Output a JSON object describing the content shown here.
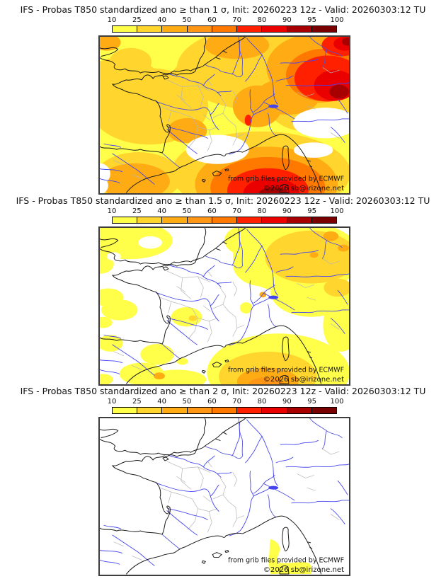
{
  "panels": [
    {
      "title": "IFS - Probas T850  standardized ano ≥ than 1 σ, Init: 20260223 12z - Valid: 20260303:12 TU",
      "threshold": "≥ 1 σ",
      "attribution_line1": "from grib files provided by ECMWF",
      "attribution_line2": "©2026 sb@irizone.net"
    },
    {
      "title": "IFS - Probas T850  standardized ano ≥ than 1.5 σ, Init: 20260223 12z - Valid: 20260303:12 TU",
      "threshold": "≥ 1.5 σ",
      "attribution_line1": "from grib files provided by ECMWF",
      "attribution_line2": "©2026 sb@irizone.net"
    },
    {
      "title": "IFS - Probas T850  standardized ano ≥ than 2 σ, Init: 20260223 12z - Valid: 20260303:12 TU",
      "threshold": "≥ 2 σ",
      "attribution_line1": "from grib files provided by ECMWF",
      "attribution_line2": "©2026 sb@irizone.net"
    }
  ],
  "colorbar": {
    "tick_labels": [
      "10",
      "25",
      "40",
      "50",
      "60",
      "70",
      "80",
      "90",
      "95",
      "100"
    ],
    "segment_colors": [
      "#FFFF4A",
      "#FFD52E",
      "#FFAC14",
      "#FF9614",
      "#FF7800",
      "#FF2000",
      "#EB0000",
      "#A80000",
      "#780000"
    ]
  },
  "palette": {
    "white": "#FFFFFF",
    "p10": "#FFFF4A",
    "p25": "#FFD52E",
    "p40": "#FFAC14",
    "p50": "#FF9614",
    "p60": "#FF7800",
    "p70": "#FF2000",
    "p80": "#EB0000",
    "p90": "#A80000",
    "p95": "#780000"
  },
  "chart_data": {
    "type": "heatmap",
    "subtype": "filled-contour probability maps over France / western Europe",
    "model": "IFS",
    "variable": "Probability that T850 standardized anomaly exceeds threshold (%)",
    "init": "20260223 12z",
    "valid": "20260303:12 TU",
    "scale_percent": [
      10,
      25,
      40,
      50,
      60,
      70,
      80,
      90,
      95,
      100
    ],
    "scale_colors": [
      "#FFFF4A",
      "#FFD52E",
      "#FFAC14",
      "#FF9614",
      "#FF7800",
      "#FF2000",
      "#EB0000",
      "#A80000",
      "#780000"
    ],
    "legend_position": "above each map",
    "panels": [
      {
        "threshold_sigma": 1,
        "summary": "Probabilities 10-50% over UK, France and Spain; 50-70% band over NE France/Benelux/Germany with >80-95% core near the German/Czech top-right corner; large maximum over the western Mediterranean south of the Balearic Islands reaching 90-95%; small 70-80% spot in the Rhone/Alps area; <10% gaps over the Gulf of Lion coast, Po valley and near the Iberian west edge."
      },
      {
        "threshold_sigma": 1.5,
        "summary": "Mostly <10% over France; 10-25% over the UK and a broad 10-40% area over Belgium/Germany with small 40-50% spots in the far NE corner; 10-50% blob over the western Mediterranean around the Balearics and Sardinia with a 50-60% core near the bottom edge; scattered 10-25% patches over the Atlantic and northern Spain."
      },
      {
        "threshold_sigma": 2,
        "summary": "Below 10% almost everywhere; a small 10-25% patch over the sea west/south of Sardinia near the bottom edge of the map."
      }
    ]
  }
}
